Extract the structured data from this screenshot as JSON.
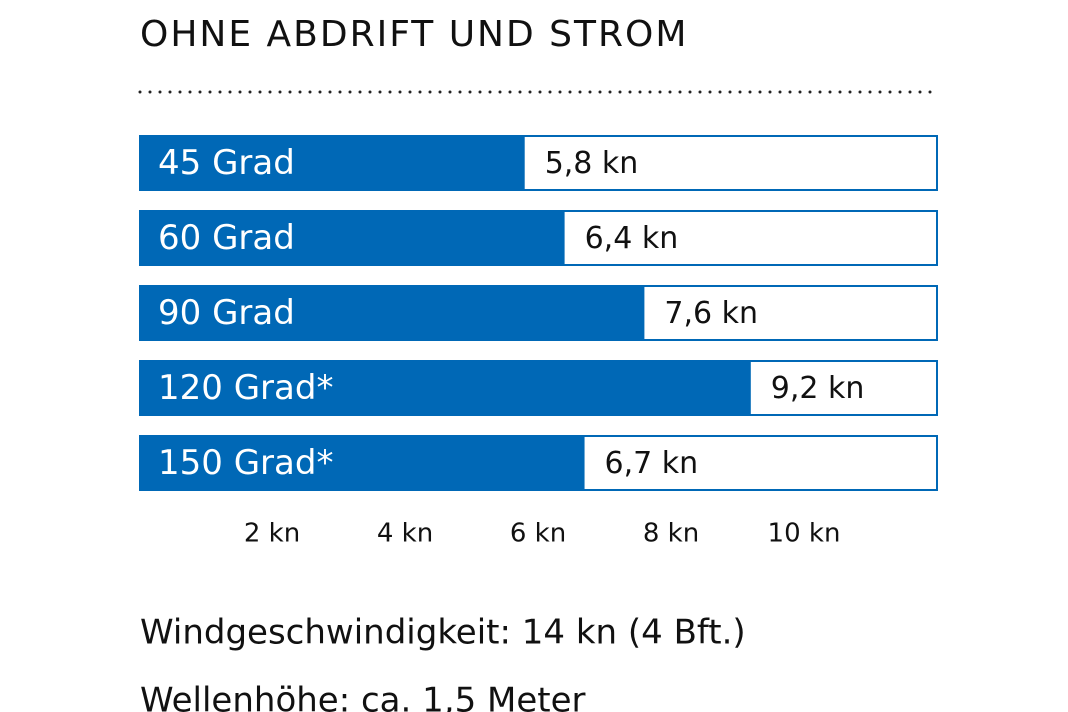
{
  "chart_data": {
    "type": "hbar",
    "title": "OHNE ABDRIFT UND STROM",
    "categories": [
      "45 Grad",
      "60 Grad",
      "90 Grad",
      "120 Grad*",
      "150 Grad*"
    ],
    "values": [
      5.8,
      6.4,
      7.6,
      9.2,
      6.7
    ],
    "value_labels": [
      "5,8 kn",
      "6,4 kn",
      "7,6 kn",
      "9,2 kn",
      "6,7 kn"
    ],
    "color": "#0068b6",
    "xlim": [
      0,
      12
    ],
    "xticks": [
      {
        "value": 2,
        "label": "2 kn"
      },
      {
        "value": 4,
        "label": "4 kn"
      },
      {
        "value": 6,
        "label": "6 kn"
      },
      {
        "value": 8,
        "label": "8 kn"
      },
      {
        "value": 10,
        "label": "10 kn"
      }
    ],
    "grid": false,
    "annotations": [
      "Windgeschwindigkeit: 14 kn (4 Bft.)",
      "Wellenhöhe: ca. 1,5 Meter"
    ]
  }
}
